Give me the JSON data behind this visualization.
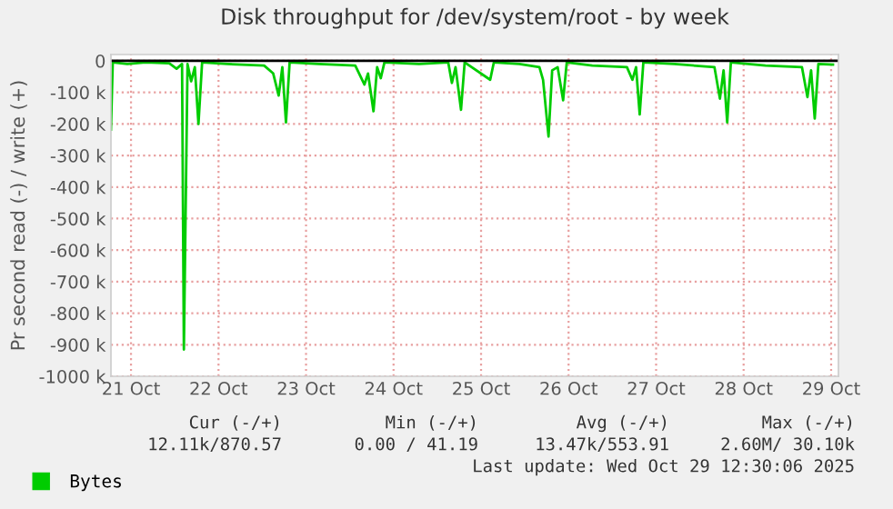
{
  "chart_data": {
    "type": "line",
    "title": "Disk throughput for /dev/system/root - by week",
    "ylabel": "Pr second read (-) / write (+)",
    "x": [
      "2025-10-21T06:30",
      "2025-10-21T07:00",
      "2025-10-21T11:00",
      "2025-10-21T16:00",
      "2025-10-21T22:30",
      "2025-10-22T00:30",
      "2025-10-22T02:00",
      "2025-10-22T02:30",
      "2025-10-22T03:30",
      "2025-10-22T04:30",
      "2025-10-22T05:30",
      "2025-10-22T06:30",
      "2025-10-22T07:30",
      "2025-10-22T14:30",
      "2025-10-23T00:30",
      "2025-10-23T03:00",
      "2025-10-23T04:30",
      "2025-10-23T05:30",
      "2025-10-23T06:30",
      "2025-10-23T07:30",
      "2025-10-23T15:30",
      "2025-10-24T01:30",
      "2025-10-24T04:00",
      "2025-10-24T05:00",
      "2025-10-24T06:30",
      "2025-10-24T07:30",
      "2025-10-24T08:30",
      "2025-10-24T09:30",
      "2025-10-24T19:00",
      "2025-10-25T03:00",
      "2025-10-25T04:00",
      "2025-10-25T05:00",
      "2025-10-25T06:30",
      "2025-10-25T07:30",
      "2025-10-25T14:30",
      "2025-10-25T15:30",
      "2025-10-25T22:30",
      "2025-10-26T04:00",
      "2025-10-26T05:00",
      "2025-10-26T06:30",
      "2025-10-26T07:30",
      "2025-10-26T09:00",
      "2025-10-26T10:30",
      "2025-10-26T11:30",
      "2025-10-26T18:30",
      "2025-10-27T04:00",
      "2025-10-27T05:30",
      "2025-10-27T06:30",
      "2025-10-27T07:30",
      "2025-10-27T08:30",
      "2025-10-27T17:00",
      "2025-10-28T04:00",
      "2025-10-28T05:30",
      "2025-10-28T06:30",
      "2025-10-28T07:30",
      "2025-10-28T08:30",
      "2025-10-28T18:00",
      "2025-10-29T04:00",
      "2025-10-29T05:30",
      "2025-10-29T06:30",
      "2025-10-29T07:30",
      "2025-10-29T08:30",
      "2025-10-29T12:30"
    ],
    "series": [
      {
        "name": "Bytes",
        "color": "#00cc00",
        "values": [
          -218000,
          -5000,
          -10000,
          -5000,
          -8000,
          -25000,
          -10000,
          -915000,
          -10000,
          -65000,
          -20000,
          -200000,
          -5000,
          -10000,
          -15000,
          -40000,
          -110000,
          -20000,
          -195000,
          -5000,
          -10000,
          -15000,
          -75000,
          -40000,
          -160000,
          -20000,
          -55000,
          -5000,
          -10000,
          -5000,
          -70000,
          -20000,
          -155000,
          -5000,
          -60000,
          -5000,
          -10000,
          -20000,
          -60000,
          -240000,
          -30000,
          -20000,
          -125000,
          -5000,
          -15000,
          -20000,
          -60000,
          -20000,
          -170000,
          -5000,
          -10000,
          -20000,
          -120000,
          -30000,
          -195000,
          -5000,
          -15000,
          -20000,
          -115000,
          -30000,
          -183000,
          -10000,
          -12000
        ]
      }
    ],
    "xlim": [
      "2025-10-21T06:30",
      "2025-10-29T14:00"
    ],
    "xticks": [
      {
        "value": "2025-10-21T12:00",
        "label": "21 Oct"
      },
      {
        "value": "2025-10-22T12:00",
        "label": "22 Oct"
      },
      {
        "value": "2025-10-23T12:00",
        "label": "23 Oct"
      },
      {
        "value": "2025-10-24T12:00",
        "label": "24 Oct"
      },
      {
        "value": "2025-10-25T12:00",
        "label": "25 Oct"
      },
      {
        "value": "2025-10-26T12:00",
        "label": "26 Oct"
      },
      {
        "value": "2025-10-27T12:00",
        "label": "27 Oct"
      },
      {
        "value": "2025-10-28T12:00",
        "label": "28 Oct"
      },
      {
        "value": "2025-10-29T12:00",
        "label": "29 Oct"
      }
    ],
    "ylim": [
      -1000000,
      20000
    ],
    "yticks": [
      {
        "value": -1000000,
        "label": "-1000 k"
      },
      {
        "value": -900000,
        "label": "-900 k"
      },
      {
        "value": -800000,
        "label": "-800 k"
      },
      {
        "value": -700000,
        "label": "-700 k"
      },
      {
        "value": -600000,
        "label": "-600 k"
      },
      {
        "value": -500000,
        "label": "-500 k"
      },
      {
        "value": -400000,
        "label": "-400 k"
      },
      {
        "value": -300000,
        "label": "-300 k"
      },
      {
        "value": -200000,
        "label": "-200 k"
      },
      {
        "value": -100000,
        "label": "-100 k"
      },
      {
        "value": 0,
        "label": "0"
      }
    ],
    "ref_lines": [
      {
        "axis": "y",
        "value": 0,
        "color": "#000000"
      }
    ],
    "grid": true,
    "legend": "bottom left",
    "marker": "none",
    "line_style": "solid",
    "annotations": [
      "Cur (-/+)",
      "Min (-/+)",
      "Avg (-/+)",
      "Max (-/+)",
      "12.11k/870.57",
      "0.00 / 41.19",
      "13.47k/553.91",
      "2.60M/ 30.10k",
      "Last update: Wed Oct 29 12:30:06 2025"
    ]
  }
}
